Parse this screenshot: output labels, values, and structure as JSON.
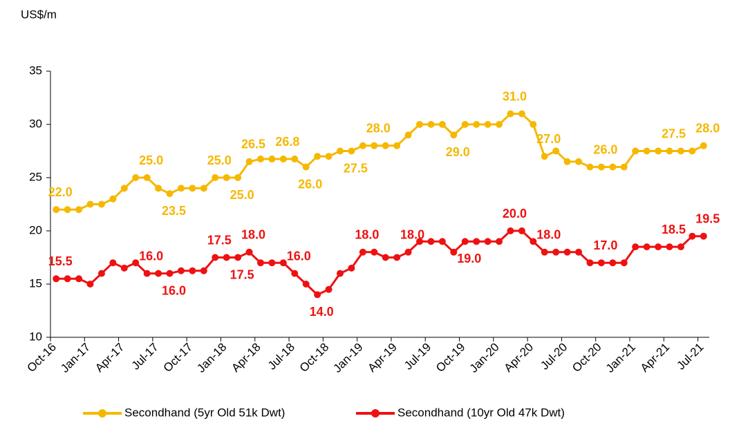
{
  "chart_data": {
    "type": "line",
    "y_label": "US$/m",
    "categories": [
      "Oct-16",
      null,
      null,
      "Jan-17",
      null,
      null,
      "Apr-17",
      null,
      null,
      "Jul-17",
      null,
      null,
      "Oct-17",
      null,
      null,
      "Jan-18",
      null,
      null,
      "Apr-18",
      null,
      null,
      "Jul-18",
      null,
      null,
      "Oct-18",
      null,
      null,
      "Jan-19",
      null,
      null,
      "Apr-19",
      null,
      null,
      "Jul-19",
      null,
      null,
      "Oct-19",
      null,
      null,
      "Jan-20",
      null,
      null,
      "Apr-20",
      null,
      null,
      "Jul-20",
      null,
      null,
      "Oct-20",
      null,
      null,
      "Jan-21",
      null,
      null,
      "Apr-21",
      null,
      null,
      "Jul-21"
    ],
    "series": [
      {
        "name": "Secondhand (5yr Old 51k Dwt)",
        "color": "#f5b800",
        "values": [
          22,
          22,
          22,
          22.5,
          22.5,
          23,
          24,
          25,
          25,
          24,
          23.5,
          24,
          24,
          24,
          25,
          25,
          25,
          26.5,
          26.75,
          26.75,
          26.75,
          26.75,
          26,
          27,
          27,
          27.5,
          27.5,
          28,
          28,
          28,
          28,
          29,
          30,
          30,
          30,
          29,
          30,
          30,
          30,
          30,
          31,
          31,
          30,
          27,
          27.5,
          26.5,
          26.5,
          26,
          26,
          26,
          26,
          27.5,
          27.5,
          27.5,
          27.5,
          27.5,
          27.5,
          28
        ],
        "value_labels": [
          "22.0",
          null,
          null,
          null,
          null,
          null,
          null,
          null,
          "25.0",
          null,
          "23.5",
          null,
          null,
          null,
          "25.0",
          null,
          "25.0",
          "26.5",
          null,
          null,
          "26.8",
          null,
          "26.0",
          null,
          null,
          null,
          "27.5",
          null,
          "28.0",
          null,
          null,
          null,
          null,
          null,
          null,
          "29.0",
          null,
          null,
          null,
          null,
          "31.0",
          null,
          null,
          "27.0",
          null,
          null,
          null,
          null,
          "26.0",
          null,
          null,
          null,
          null,
          null,
          "27.5",
          null,
          null,
          "28.0"
        ]
      },
      {
        "name": "Secondhand (10yr Old 47k Dwt)",
        "color": "#ee1111",
        "values": [
          15.5,
          15.5,
          15.5,
          15,
          16,
          17,
          16.5,
          17,
          16,
          16,
          16,
          16.25,
          16.25,
          16.25,
          17.5,
          17.5,
          17.5,
          18,
          17,
          17,
          17,
          16,
          15,
          14,
          14.5,
          16,
          16.5,
          18,
          18,
          17.5,
          17.5,
          18,
          19,
          19,
          19,
          18,
          19,
          19,
          19,
          19,
          20,
          20,
          19,
          18,
          18,
          18,
          18,
          17,
          17,
          17,
          17,
          18.5,
          18.5,
          18.5,
          18.5,
          18.5,
          19.5,
          19.5
        ],
        "value_labels": [
          "15.5",
          null,
          null,
          null,
          null,
          null,
          null,
          null,
          "16.0",
          null,
          "16.0",
          null,
          null,
          null,
          "17.5",
          null,
          "17.5",
          "18.0",
          null,
          null,
          null,
          "16.0",
          null,
          "14.0",
          null,
          null,
          null,
          "18.0",
          null,
          null,
          null,
          "18.0",
          null,
          null,
          null,
          null,
          "19.0",
          null,
          null,
          null,
          "20.0",
          null,
          null,
          "18.0",
          null,
          null,
          null,
          null,
          "17.0",
          null,
          null,
          null,
          null,
          null,
          "18.5",
          null,
          null,
          "19.5"
        ]
      }
    ],
    "ylim": [
      10,
      35
    ],
    "yticks": [
      10,
      15,
      20,
      25,
      30,
      35
    ],
    "grid": false,
    "legend": "bottom"
  }
}
